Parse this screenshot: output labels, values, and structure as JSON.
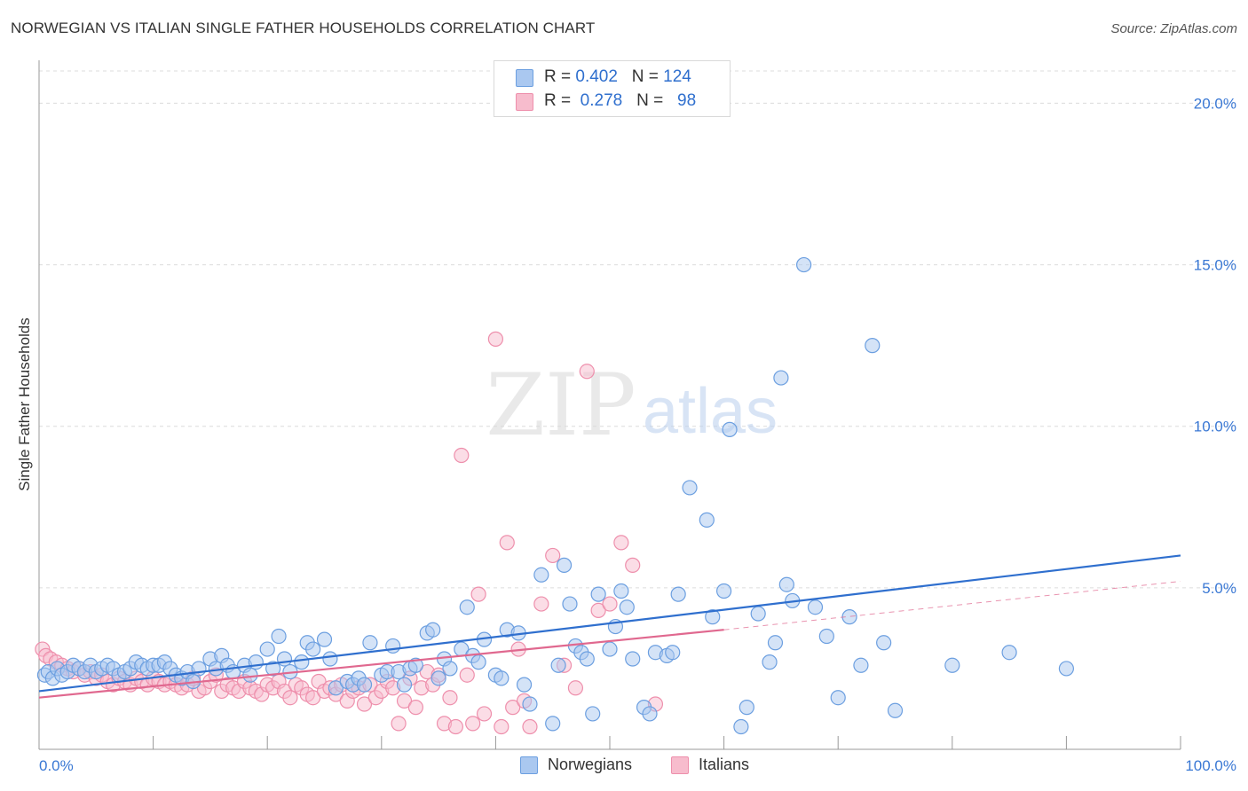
{
  "title": "NORWEGIAN VS ITALIAN SINGLE FATHER HOUSEHOLDS CORRELATION CHART",
  "source": "Source: ZipAtlas.com",
  "watermark": {
    "zip": "ZIP",
    "atlas": "atlas"
  },
  "colors": {
    "norwegians_fill": "#aac8f0",
    "norwegians_stroke": "#6c9fe0",
    "norwegians_line": "#2f6fce",
    "italians_fill": "#f7bccd",
    "italians_stroke": "#ee8fac",
    "italians_line": "#e0688f",
    "tick_label": "#3a78d4",
    "grid": "#dcdcdc"
  },
  "legend": {
    "r_label": "R =",
    "n_label": "N =",
    "rows": [
      {
        "r": "0.402",
        "n": "124"
      },
      {
        "r": "0.278",
        "n": "98"
      }
    ]
  },
  "chart_data": {
    "type": "scatter",
    "title": "NORWEGIAN VS ITALIAN SINGLE FATHER HOUSEHOLDS CORRELATION CHART",
    "xlabel": "",
    "ylabel": "Single Father Households",
    "xlim": [
      0,
      100
    ],
    "ylim": [
      0,
      21
    ],
    "x_tick_labels": [
      "0.0%",
      "100.0%"
    ],
    "y_ticks": [
      5,
      10,
      15,
      20
    ],
    "y_tick_labels": [
      "5.0%",
      "10.0%",
      "15.0%",
      "20.0%"
    ],
    "grid": true,
    "legend_position": "top-center",
    "series": [
      {
        "name": "Norwegians",
        "trend": {
          "x": [
            0,
            100
          ],
          "y": [
            1.8,
            6.0
          ]
        },
        "points": [
          [
            0.5,
            2.3
          ],
          [
            0.8,
            2.4
          ],
          [
            1.2,
            2.2
          ],
          [
            1.6,
            2.5
          ],
          [
            2.0,
            2.3
          ],
          [
            2.5,
            2.4
          ],
          [
            3,
            2.6
          ],
          [
            3.5,
            2.5
          ],
          [
            4,
            2.4
          ],
          [
            4.5,
            2.6
          ],
          [
            5,
            2.4
          ],
          [
            5.5,
            2.5
          ],
          [
            6,
            2.6
          ],
          [
            6.5,
            2.5
          ],
          [
            7,
            2.3
          ],
          [
            7.5,
            2.4
          ],
          [
            8,
            2.5
          ],
          [
            8.5,
            2.7
          ],
          [
            9,
            2.6
          ],
          [
            9.5,
            2.5
          ],
          [
            10,
            2.6
          ],
          [
            10.5,
            2.6
          ],
          [
            11,
            2.7
          ],
          [
            11.5,
            2.5
          ],
          [
            12,
            2.3
          ],
          [
            12.5,
            2.2
          ],
          [
            13,
            2.4
          ],
          [
            13.5,
            2.1
          ],
          [
            14,
            2.5
          ],
          [
            15,
            2.8
          ],
          [
            15.5,
            2.5
          ],
          [
            16,
            2.9
          ],
          [
            16.5,
            2.6
          ],
          [
            17,
            2.4
          ],
          [
            18,
            2.6
          ],
          [
            18.5,
            2.3
          ],
          [
            19,
            2.7
          ],
          [
            20,
            3.1
          ],
          [
            20.5,
            2.5
          ],
          [
            21,
            3.5
          ],
          [
            21.5,
            2.8
          ],
          [
            22,
            2.4
          ],
          [
            23,
            2.7
          ],
          [
            23.5,
            3.3
          ],
          [
            24,
            3.1
          ],
          [
            25,
            3.4
          ],
          [
            25.5,
            2.8
          ],
          [
            26,
            1.9
          ],
          [
            27,
            2.1
          ],
          [
            27.5,
            2.0
          ],
          [
            28,
            2.2
          ],
          [
            28.5,
            2.0
          ],
          [
            29,
            3.3
          ],
          [
            30,
            2.3
          ],
          [
            30.5,
            2.4
          ],
          [
            31,
            3.2
          ],
          [
            31.5,
            2.4
          ],
          [
            32,
            2.0
          ],
          [
            32.5,
            2.5
          ],
          [
            33,
            2.6
          ],
          [
            34,
            3.6
          ],
          [
            34.5,
            3.7
          ],
          [
            35,
            2.2
          ],
          [
            35.5,
            2.8
          ],
          [
            36,
            2.5
          ],
          [
            37,
            3.1
          ],
          [
            37.5,
            4.4
          ],
          [
            38,
            2.9
          ],
          [
            38.5,
            2.7
          ],
          [
            39,
            3.4
          ],
          [
            40,
            2.3
          ],
          [
            40.5,
            2.2
          ],
          [
            41,
            3.7
          ],
          [
            42,
            3.6
          ],
          [
            42.5,
            2.0
          ],
          [
            43,
            1.4
          ],
          [
            44,
            5.4
          ],
          [
            45,
            0.8
          ],
          [
            45.5,
            2.6
          ],
          [
            46,
            5.7
          ],
          [
            46.5,
            4.5
          ],
          [
            47,
            3.2
          ],
          [
            47.5,
            3.0
          ],
          [
            48,
            2.8
          ],
          [
            48.5,
            1.1
          ],
          [
            49,
            4.8
          ],
          [
            50,
            3.1
          ],
          [
            50.5,
            3.8
          ],
          [
            51,
            4.9
          ],
          [
            51.5,
            4.4
          ],
          [
            52,
            2.8
          ],
          [
            53,
            1.3
          ],
          [
            53.5,
            1.1
          ],
          [
            54,
            3.0
          ],
          [
            55,
            2.9
          ],
          [
            55.5,
            3.0
          ],
          [
            56,
            4.8
          ],
          [
            57,
            8.1
          ],
          [
            58.5,
            7.1
          ],
          [
            59,
            4.1
          ],
          [
            60,
            4.9
          ],
          [
            60.5,
            9.9
          ],
          [
            61.5,
            0.7
          ],
          [
            62,
            1.3
          ],
          [
            63,
            4.2
          ],
          [
            64,
            2.7
          ],
          [
            64.5,
            3.3
          ],
          [
            65,
            11.5
          ],
          [
            65.5,
            5.1
          ],
          [
            66,
            4.6
          ],
          [
            67,
            15.0
          ],
          [
            68,
            4.4
          ],
          [
            69,
            3.5
          ],
          [
            70,
            1.6
          ],
          [
            71,
            4.1
          ],
          [
            72,
            2.6
          ],
          [
            73,
            12.5
          ],
          [
            74,
            3.3
          ],
          [
            75,
            1.2
          ],
          [
            80,
            2.6
          ],
          [
            85,
            3.0
          ],
          [
            90,
            2.5
          ]
        ]
      },
      {
        "name": "Italians",
        "trend": {
          "x": [
            0,
            60
          ],
          "y": [
            1.6,
            3.7
          ]
        },
        "trend_dashed": {
          "x": [
            60,
            100
          ],
          "y": [
            3.7,
            5.2
          ]
        },
        "points": [
          [
            0.3,
            3.1
          ],
          [
            0.6,
            2.9
          ],
          [
            1,
            2.8
          ],
          [
            1.5,
            2.7
          ],
          [
            2,
            2.6
          ],
          [
            2.5,
            2.5
          ],
          [
            3,
            2.4
          ],
          [
            3.5,
            2.5
          ],
          [
            4,
            2.3
          ],
          [
            4.5,
            2.4
          ],
          [
            5,
            2.2
          ],
          [
            5.5,
            2.3
          ],
          [
            6,
            2.1
          ],
          [
            6.5,
            2.0
          ],
          [
            7,
            2.2
          ],
          [
            7.5,
            2.1
          ],
          [
            8,
            2.0
          ],
          [
            8.5,
            2.2
          ],
          [
            9,
            2.1
          ],
          [
            9.5,
            2.0
          ],
          [
            10,
            2.2
          ],
          [
            10.5,
            2.1
          ],
          [
            11,
            2.0
          ],
          [
            11.5,
            2.1
          ],
          [
            12,
            2.0
          ],
          [
            12.5,
            1.9
          ],
          [
            13,
            2.0
          ],
          [
            13.5,
            2.2
          ],
          [
            14,
            1.8
          ],
          [
            14.5,
            1.9
          ],
          [
            15,
            2.1
          ],
          [
            15.5,
            2.3
          ],
          [
            16,
            1.8
          ],
          [
            16.5,
            2.0
          ],
          [
            17,
            1.9
          ],
          [
            17.5,
            1.8
          ],
          [
            18,
            2.1
          ],
          [
            18.5,
            1.9
          ],
          [
            19,
            1.8
          ],
          [
            19.5,
            1.7
          ],
          [
            20,
            2.0
          ],
          [
            20.5,
            1.9
          ],
          [
            21,
            2.1
          ],
          [
            21.5,
            1.8
          ],
          [
            22,
            1.6
          ],
          [
            22.5,
            2.0
          ],
          [
            23,
            1.9
          ],
          [
            23.5,
            1.7
          ],
          [
            24,
            1.6
          ],
          [
            24.5,
            2.1
          ],
          [
            25,
            1.8
          ],
          [
            25.5,
            1.9
          ],
          [
            26,
            1.7
          ],
          [
            26.5,
            2.0
          ],
          [
            27,
            1.5
          ],
          [
            27.5,
            1.8
          ],
          [
            28,
            1.9
          ],
          [
            28.5,
            1.4
          ],
          [
            29,
            2.0
          ],
          [
            29.5,
            1.6
          ],
          [
            30,
            1.8
          ],
          [
            30.5,
            2.1
          ],
          [
            31,
            1.9
          ],
          [
            31.5,
            0.8
          ],
          [
            32,
            1.5
          ],
          [
            32.5,
            2.2
          ],
          [
            33,
            1.3
          ],
          [
            33.5,
            1.9
          ],
          [
            34,
            2.4
          ],
          [
            34.5,
            2.0
          ],
          [
            35,
            2.3
          ],
          [
            35.5,
            0.8
          ],
          [
            36,
            1.6
          ],
          [
            36.5,
            0.7
          ],
          [
            37,
            9.1
          ],
          [
            37.5,
            2.3
          ],
          [
            38,
            0.8
          ],
          [
            38.5,
            4.8
          ],
          [
            39,
            1.1
          ],
          [
            40,
            12.7
          ],
          [
            40.5,
            0.7
          ],
          [
            41,
            6.4
          ],
          [
            41.5,
            1.3
          ],
          [
            42,
            3.1
          ],
          [
            42.5,
            1.5
          ],
          [
            43,
            0.7
          ],
          [
            44,
            4.5
          ],
          [
            45,
            6.0
          ],
          [
            46,
            2.6
          ],
          [
            47,
            1.9
          ],
          [
            48,
            11.7
          ],
          [
            49,
            4.3
          ],
          [
            50,
            4.5
          ],
          [
            51,
            6.4
          ],
          [
            52,
            5.7
          ],
          [
            54,
            1.4
          ]
        ]
      }
    ]
  }
}
